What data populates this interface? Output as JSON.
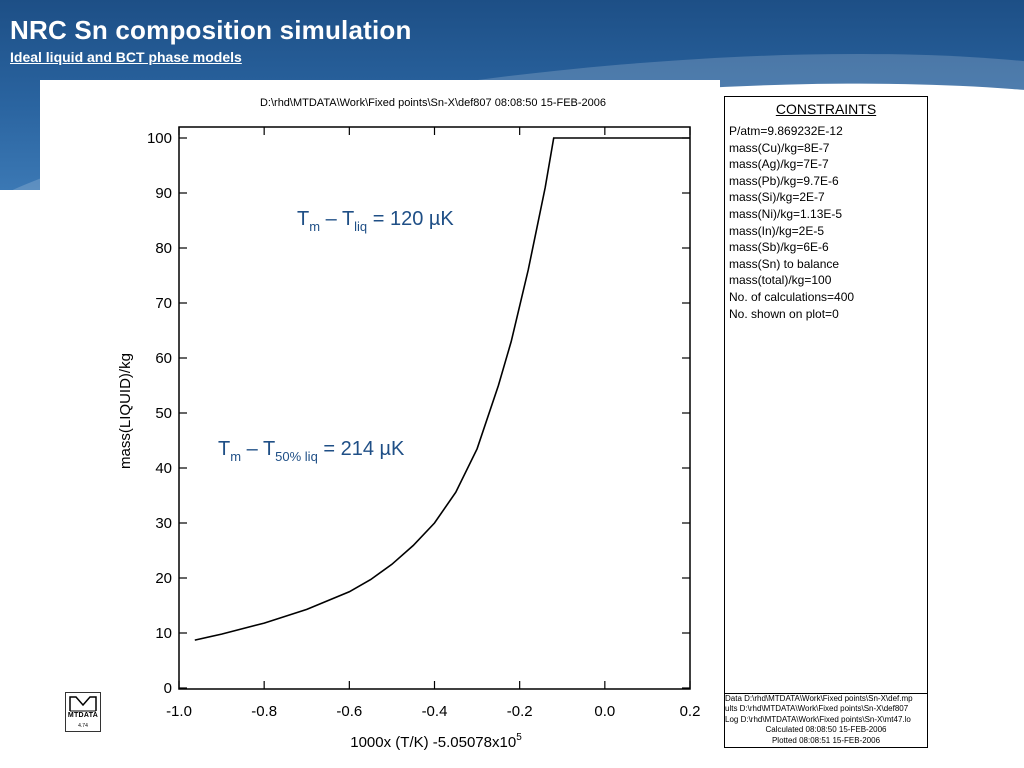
{
  "slide": {
    "title": "NRC Sn composition simulation",
    "subtitle": "Ideal liquid and BCT phase models"
  },
  "logo": {
    "text": "MTDATA",
    "version": "4.74"
  },
  "chart_data": {
    "type": "line",
    "header": "D:\\rhd\\MTDATA\\Work\\Fixed points\\Sn-X\\def807  08:08:50 15-FEB-2006",
    "xlabel": "1000x (T/K) -5.05078x10",
    "xlabel_exp": "5",
    "ylabel": "mass(LIQUID)/kg",
    "xlim": [
      -1.0,
      0.2
    ],
    "ylim": [
      0,
      100
    ],
    "xticks": [
      -1.0,
      -0.8,
      -0.6,
      -0.4,
      -0.2,
      0.0,
      0.2
    ],
    "xtick_labels": [
      "-1.0",
      "-0.8",
      "-0.6",
      "-0.4",
      "-0.2",
      "0.0",
      "0.2"
    ],
    "yticks": [
      0,
      10,
      20,
      30,
      40,
      50,
      60,
      70,
      80,
      90,
      100
    ],
    "ytick_labels": [
      "0",
      "10",
      "20",
      "30",
      "40",
      "50",
      "60",
      "70",
      "80",
      "90",
      "100"
    ],
    "grid": false,
    "series": [
      {
        "x": [
          -0.963,
          -0.9,
          -0.8,
          -0.7,
          -0.6,
          -0.55,
          -0.5,
          -0.45,
          -0.4,
          -0.35,
          -0.3,
          -0.25,
          -0.22,
          -0.2,
          -0.18,
          -0.16,
          -0.14,
          -0.12,
          -0.12,
          0.0,
          0.2
        ],
        "y": [
          8.7,
          9.8,
          11.8,
          14.3,
          17.5,
          19.7,
          22.5,
          25.9,
          30.0,
          35.6,
          43.5,
          55.0,
          63.0,
          69.5,
          76.0,
          83.5,
          91.0,
          100.0,
          100.0,
          100.0,
          100.0
        ],
        "color": "#000000"
      }
    ],
    "annotations": [
      {
        "main": "T",
        "sub1": "m",
        "mid": " – T",
        "sub2": "liq",
        "tail": " = 120 µK",
        "color": "#1f4f86"
      },
      {
        "main": "T",
        "sub1": "m",
        "mid": " – T",
        "sub2": "50% liq",
        "tail": " = 214 µK",
        "color": "#1f4f86"
      }
    ]
  },
  "constraints": {
    "title": "CONSTRAINTS",
    "items": [
      "P/atm=9.869232E-12",
      "mass(Cu)/kg=8E-7",
      "mass(Ag)/kg=7E-7",
      "mass(Pb)/kg=9.7E-6",
      "mass(Si)/kg=2E-7",
      "mass(Ni)/kg=1.13E-5",
      "mass(In)/kg=2E-5",
      "mass(Sb)/kg=6E-6",
      "mass(Sn) to balance",
      "mass(total)/kg=100",
      "No. of calculations=400",
      "No. shown on plot=0"
    ],
    "footer": [
      "Data D:\\rhd\\MTDATA\\Work\\Fixed points\\Sn-X\\def.mp",
      "ults D:\\rhd\\MTDATA\\Work\\Fixed points\\Sn-X\\def807",
      "Log D:\\rhd\\MTDATA\\Work\\Fixed points\\Sn-X\\mt47.lo",
      "Calculated 08:08:50 15-FEB-2006",
      "Plotted  08:08:51 15-FEB-2006"
    ]
  }
}
